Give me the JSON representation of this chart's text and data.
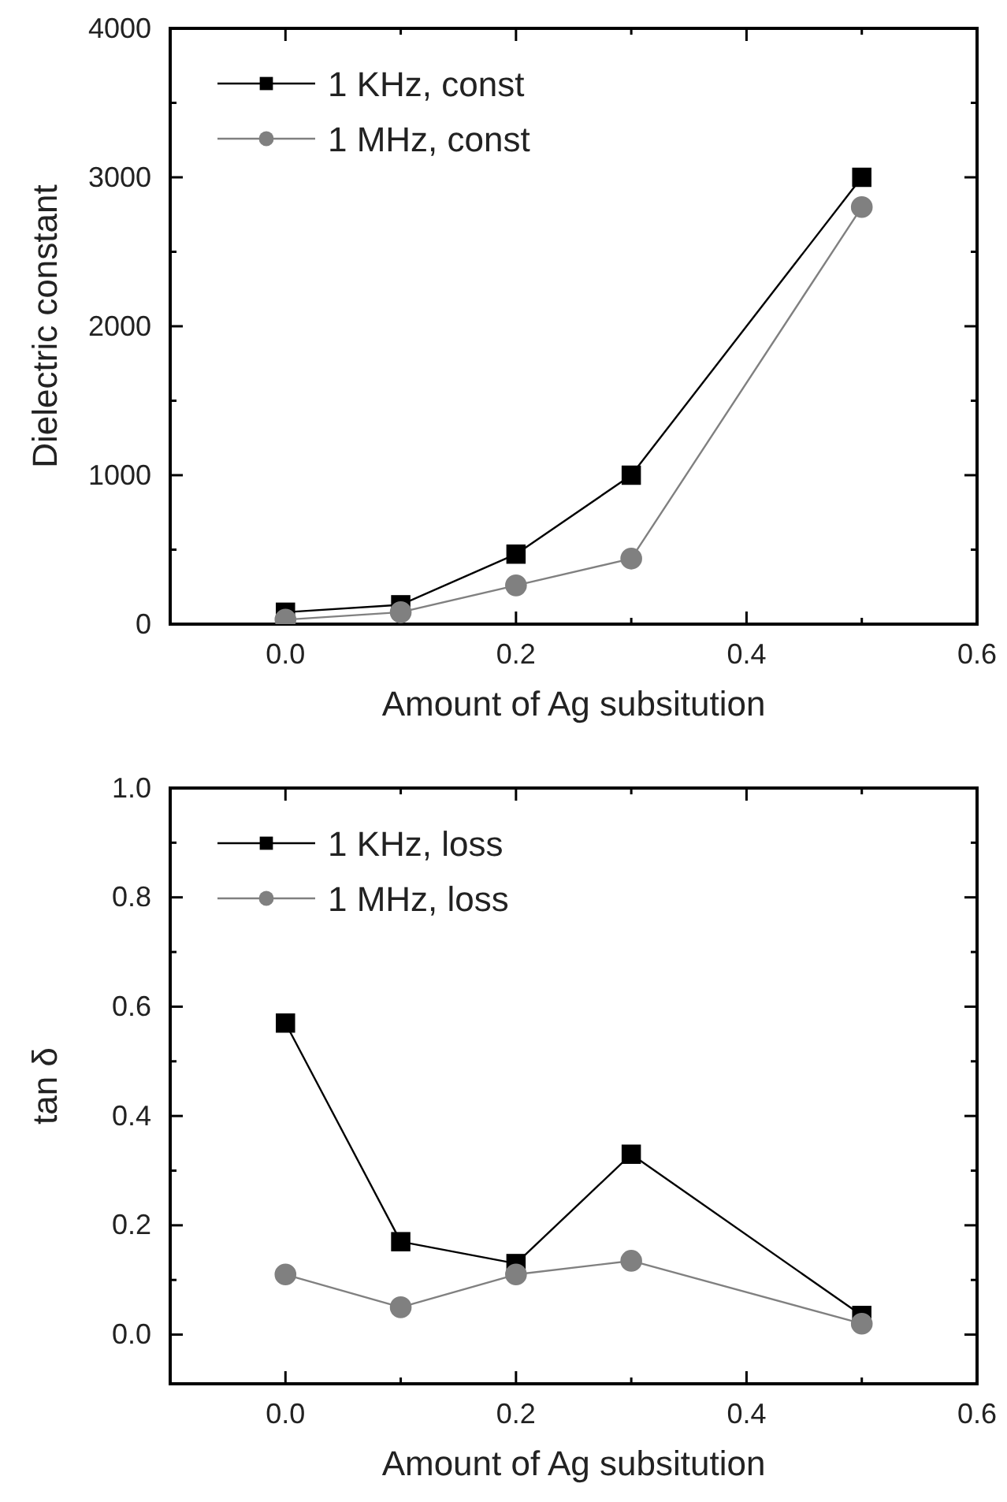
{
  "chart_data": [
    {
      "type": "line",
      "xlabel": "Amount of Ag subsitution",
      "ylabel": "Dielectric constant",
      "x": [
        0.0,
        0.1,
        0.2,
        0.3,
        0.5
      ],
      "xlim": [
        -0.1,
        0.6
      ],
      "xticks": [
        {
          "value": 0,
          "label": "0.0"
        },
        0.2,
        0.4,
        0.6
      ],
      "ylim": [
        0,
        4000
      ],
      "yticks": [
        0,
        1000,
        2000,
        3000,
        4000
      ],
      "legend": "top left",
      "line_style": "solid",
      "grid": false,
      "series": [
        {
          "name": "1 KHz, const",
          "color": "#000000",
          "marker": "square",
          "values": [
            80,
            130,
            470,
            1000,
            3000
          ]
        },
        {
          "name": "1 MHz, const",
          "color": "#808080",
          "marker": "circle",
          "values": [
            30,
            80,
            260,
            440,
            2800
          ]
        }
      ]
    },
    {
      "type": "line",
      "xlabel": "Amount of Ag subsitution",
      "ylabel": "tan δ",
      "x": [
        0.0,
        0.1,
        0.2,
        0.3,
        0.5
      ],
      "xlim": [
        -0.1,
        0.6
      ],
      "xticks": [
        {
          "value": 0,
          "label": "0.0"
        },
        0.2,
        0.4,
        0.6
      ],
      "ylim": [
        -0.09,
        1.0
      ],
      "yticks": [
        {
          "value": 0,
          "label": "0.0"
        },
        0.2,
        0.4,
        0.6,
        0.8,
        {
          "value": 1,
          "label": "1.0"
        }
      ],
      "legend": "top left",
      "line_style": "solid",
      "grid": false,
      "series": [
        {
          "name": "1 KHz, loss",
          "color": "#000000",
          "marker": "square",
          "values": [
            0.57,
            0.17,
            0.13,
            0.33,
            0.035
          ]
        },
        {
          "name": "1 MHz, loss",
          "color": "#808080",
          "marker": "circle",
          "values": [
            0.11,
            0.05,
            0.11,
            0.135,
            0.02
          ]
        }
      ]
    }
  ]
}
